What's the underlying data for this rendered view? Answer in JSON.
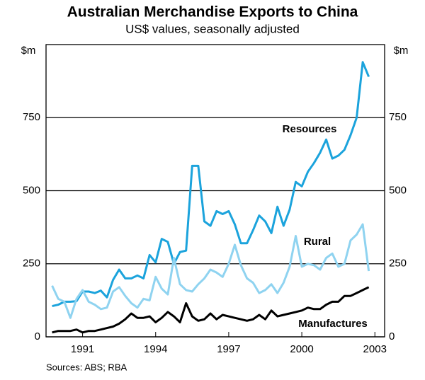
{
  "chart_data": {
    "type": "line",
    "title": "Australian Merchandise Exports to China",
    "subtitle": "US$ values, seasonally adjusted",
    "ylabel": "$m",
    "y2label": "$m",
    "source": "Sources: ABS; RBA",
    "x": [
      1989.75,
      1990,
      1990.25,
      1990.5,
      1990.75,
      1991,
      1991.25,
      1991.5,
      1991.75,
      1992,
      1992.25,
      1992.5,
      1992.75,
      1993,
      1993.25,
      1993.5,
      1993.75,
      1994,
      1994.25,
      1994.5,
      1994.75,
      1995,
      1995.25,
      1995.5,
      1995.75,
      1996,
      1996.25,
      1996.5,
      1996.75,
      1997,
      1997.25,
      1997.5,
      1997.75,
      1998,
      1998.25,
      1998.5,
      1998.75,
      1999,
      1999.25,
      1999.5,
      1999.75,
      2000,
      2000.25,
      2000.5,
      2000.75,
      2001,
      2001.25,
      2001.5,
      2001.75,
      2002,
      2002.25,
      2002.5,
      2002.75
    ],
    "series": [
      {
        "name": "Resources",
        "color": "#1ba3dc",
        "values": [
          105,
          110,
          120,
          120,
          122,
          155,
          155,
          150,
          158,
          135,
          195,
          230,
          200,
          200,
          210,
          200,
          280,
          255,
          335,
          325,
          250,
          290,
          295,
          585,
          585,
          395,
          380,
          430,
          420,
          430,
          385,
          320,
          320,
          365,
          415,
          395,
          355,
          445,
          380,
          435,
          530,
          515,
          565,
          595,
          630,
          675,
          610,
          620,
          640,
          690,
          750,
          940,
          890
        ]
      },
      {
        "name": "Rural",
        "color": "#8fd3f0",
        "values": [
          175,
          130,
          120,
          65,
          130,
          160,
          120,
          110,
          95,
          100,
          155,
          170,
          140,
          115,
          100,
          130,
          125,
          205,
          165,
          145,
          270,
          180,
          160,
          155,
          180,
          200,
          230,
          220,
          205,
          250,
          315,
          245,
          200,
          185,
          150,
          160,
          180,
          150,
          185,
          240,
          345,
          240,
          250,
          245,
          230,
          270,
          285,
          240,
          250,
          330,
          350,
          385,
          225
        ]
      },
      {
        "name": "Manufactures",
        "color": "#000000",
        "values": [
          15,
          20,
          20,
          20,
          25,
          15,
          20,
          20,
          25,
          30,
          35,
          45,
          60,
          80,
          65,
          65,
          70,
          50,
          65,
          85,
          70,
          50,
          115,
          70,
          55,
          60,
          80,
          60,
          75,
          70,
          65,
          60,
          55,
          60,
          75,
          60,
          90,
          70,
          75,
          80,
          85,
          90,
          100,
          95,
          95,
          110,
          120,
          120,
          140,
          140,
          150,
          160,
          170
        ]
      }
    ],
    "xlim": [
      1989.5,
      2003.4
    ],
    "xticks": [
      1991,
      1994,
      1997,
      2000,
      2003
    ],
    "ylim": [
      0,
      1000
    ],
    "yticks": [
      0,
      250,
      500,
      750
    ],
    "y2lim": [
      0,
      1000
    ],
    "y2ticks": [
      0,
      250,
      500,
      750
    ],
    "grid": true
  }
}
